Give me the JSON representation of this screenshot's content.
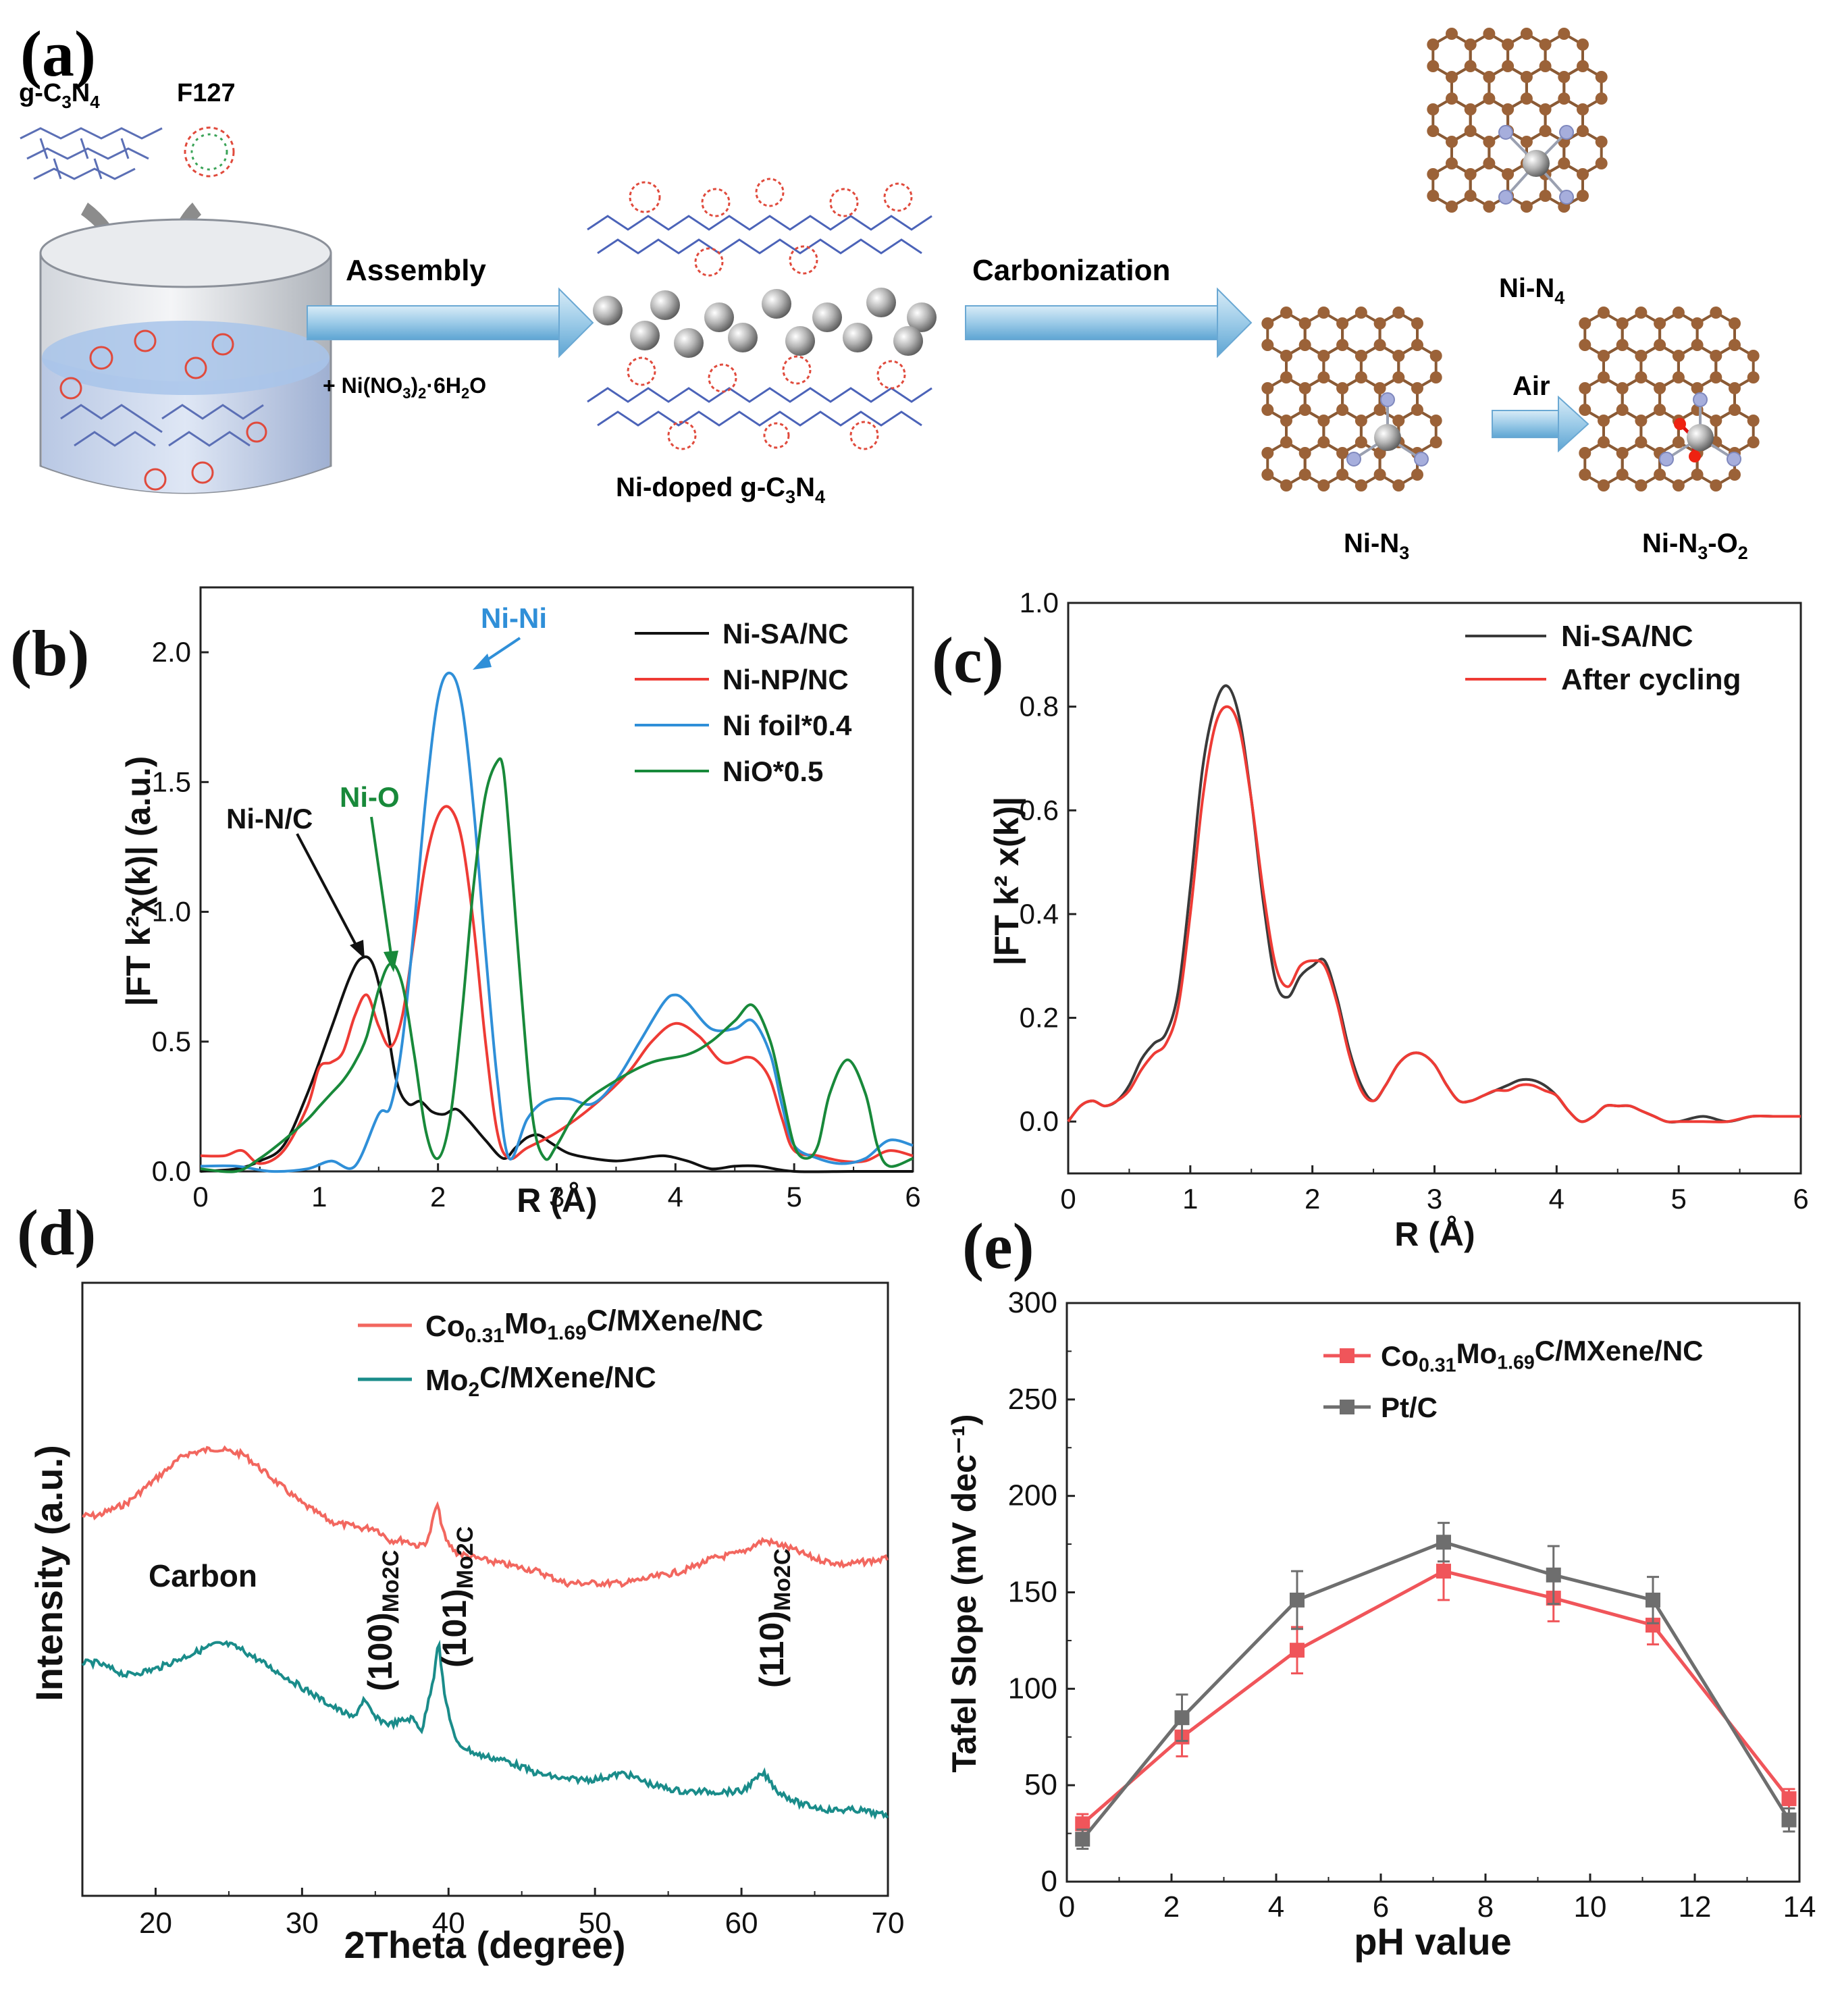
{
  "panel_a": {
    "label": "(a)",
    "g_c3n4": {
      "pre": "g-C",
      "sub1": "3",
      "mid": "N",
      "sub2": "4"
    },
    "f127": "F127",
    "assembly": "Assembly",
    "reagent": {
      "pre": "+ Ni(NO",
      "sub1": "3",
      "mid": ")",
      "sub2": "2",
      "post": "·6H",
      "sub3": "2",
      "end": "O"
    },
    "carbonization": "Carbonization",
    "ni_doped": {
      "pre": "Ni-doped g-C",
      "sub1": "3",
      "mid": "N",
      "sub2": "4"
    },
    "ni_n4": {
      "pre": "Ni-N",
      "sub": "4"
    },
    "ni_n3": {
      "pre": "Ni-N",
      "sub": "3"
    },
    "air": "Air",
    "ni_n3_o2": {
      "pre": "Ni-N",
      "sub1": "3",
      "mid": "-O",
      "sub2": "2"
    }
  },
  "chart_data": [
    {
      "panel": "b",
      "label": "(b)",
      "type": "line",
      "xlabel": "R (Å)",
      "ylabel": "|FT k²χ(k)| (a.u.)",
      "xlim": [
        0,
        6
      ],
      "ylim": [
        0,
        2.25
      ],
      "xticks": [
        "0",
        "1",
        "2",
        "3",
        "4",
        "5",
        "6"
      ],
      "yticks": [
        "0.0",
        "0.5",
        "1.0",
        "1.5",
        "2.0"
      ],
      "legend_position": "top-right",
      "annotations": [
        {
          "text": "Ni-Ni",
          "color": "#2f8fd8"
        },
        {
          "text": "Ni-N/C",
          "color": "#111111"
        },
        {
          "text": "Ni-O",
          "color": "#18893a"
        }
      ],
      "series": [
        {
          "name": "Ni-SA/NC",
          "color": "#111111",
          "x": [
            0,
            0.3,
            0.5,
            0.7,
            0.9,
            1.1,
            1.25,
            1.35,
            1.45,
            1.55,
            1.65,
            1.75,
            1.85,
            1.95,
            2.05,
            2.15,
            2.25,
            2.4,
            2.55,
            2.65,
            2.75,
            2.85,
            2.95,
            3.1,
            3.3,
            3.5,
            3.7,
            3.9,
            4.1,
            4.3,
            4.5,
            4.7,
            5,
            5.5,
            6
          ],
          "y": [
            0,
            0.01,
            0.04,
            0.1,
            0.3,
            0.55,
            0.74,
            0.82,
            0.8,
            0.62,
            0.35,
            0.26,
            0.27,
            0.23,
            0.22,
            0.24,
            0.2,
            0.12,
            0.05,
            0.09,
            0.13,
            0.14,
            0.11,
            0.07,
            0.05,
            0.04,
            0.05,
            0.06,
            0.04,
            0.01,
            0.02,
            0.02,
            0.0,
            0.0,
            0.0
          ]
        },
        {
          "name": "Ni-NP/NC",
          "color": "#ee3b35",
          "x": [
            0,
            0.2,
            0.35,
            0.5,
            0.7,
            0.9,
            1.0,
            1.1,
            1.2,
            1.3,
            1.4,
            1.5,
            1.6,
            1.7,
            1.8,
            1.9,
            2.0,
            2.1,
            2.2,
            2.3,
            2.4,
            2.5,
            2.6,
            2.75,
            3.0,
            3.3,
            3.6,
            3.8,
            4.0,
            4.2,
            4.4,
            4.6,
            4.7,
            4.8,
            4.9,
            5.0,
            5.2,
            5.4,
            5.6,
            5.8,
            6
          ],
          "y": [
            0.06,
            0.06,
            0.08,
            0.03,
            0.08,
            0.25,
            0.4,
            0.42,
            0.46,
            0.6,
            0.68,
            0.56,
            0.48,
            0.6,
            0.9,
            1.2,
            1.37,
            1.4,
            1.28,
            0.95,
            0.5,
            0.15,
            0.05,
            0.09,
            0.15,
            0.25,
            0.38,
            0.5,
            0.57,
            0.52,
            0.42,
            0.44,
            0.42,
            0.35,
            0.2,
            0.08,
            0.06,
            0.04,
            0.04,
            0.08,
            0.06
          ]
        },
        {
          "name": "Ni foil*0.4",
          "color": "#2f8fd8",
          "x": [
            0,
            0.3,
            0.6,
            0.9,
            1.1,
            1.3,
            1.5,
            1.6,
            1.7,
            1.8,
            1.9,
            2.0,
            2.1,
            2.2,
            2.3,
            2.4,
            2.5,
            2.6,
            2.75,
            2.9,
            3.1,
            3.3,
            3.5,
            3.7,
            3.9,
            4.0,
            4.1,
            4.3,
            4.5,
            4.65,
            4.8,
            4.9,
            5.0,
            5.2,
            5.4,
            5.6,
            5.8,
            6
          ],
          "y": [
            0.02,
            0.02,
            0.0,
            0.01,
            0.04,
            0.02,
            0.22,
            0.25,
            0.5,
            0.95,
            1.45,
            1.82,
            1.92,
            1.8,
            1.4,
            0.85,
            0.35,
            0.05,
            0.2,
            0.27,
            0.28,
            0.26,
            0.35,
            0.5,
            0.65,
            0.68,
            0.65,
            0.55,
            0.55,
            0.58,
            0.45,
            0.25,
            0.1,
            0.05,
            0.03,
            0.05,
            0.12,
            0.1
          ]
        },
        {
          "name": "NiO*0.5",
          "color": "#18893a",
          "x": [
            0,
            0.3,
            0.5,
            0.7,
            0.9,
            1.0,
            1.1,
            1.2,
            1.3,
            1.4,
            1.5,
            1.6,
            1.7,
            1.8,
            1.9,
            2.0,
            2.1,
            2.2,
            2.3,
            2.4,
            2.5,
            2.55,
            2.6,
            2.7,
            2.8,
            2.9,
            3.0,
            3.2,
            3.5,
            3.8,
            4.1,
            4.3,
            4.5,
            4.65,
            4.8,
            4.9,
            5.0,
            5.1,
            5.2,
            5.3,
            5.45,
            5.6,
            5.7,
            5.8,
            6
          ],
          "y": [
            0.01,
            0.0,
            0.05,
            0.12,
            0.2,
            0.25,
            0.3,
            0.35,
            0.42,
            0.52,
            0.7,
            0.8,
            0.72,
            0.45,
            0.15,
            0.05,
            0.2,
            0.6,
            1.1,
            1.45,
            1.58,
            1.55,
            1.3,
            0.7,
            0.2,
            0.05,
            0.1,
            0.25,
            0.35,
            0.42,
            0.45,
            0.5,
            0.58,
            0.64,
            0.5,
            0.3,
            0.1,
            0.05,
            0.1,
            0.3,
            0.43,
            0.3,
            0.1,
            0.02,
            0.05
          ]
        }
      ]
    },
    {
      "panel": "c",
      "label": "(c)",
      "type": "line",
      "xlabel": "R (Å)",
      "ylabel": "|FT k² x(k)|",
      "xlim": [
        0,
        6
      ],
      "ylim": [
        -0.1,
        1.0
      ],
      "xticks": [
        "0",
        "1",
        "2",
        "3",
        "4",
        "5",
        "6"
      ],
      "yticks": [
        "0.0",
        "0.2",
        "0.4",
        "0.6",
        "0.8",
        "1.0"
      ],
      "legend_position": "top-right",
      "series": [
        {
          "name": "Ni-SA/NC",
          "color": "#3a3a3a",
          "x": [
            0,
            0.1,
            0.2,
            0.3,
            0.4,
            0.5,
            0.6,
            0.7,
            0.8,
            0.9,
            1.0,
            1.1,
            1.2,
            1.3,
            1.4,
            1.5,
            1.6,
            1.7,
            1.8,
            1.9,
            2.0,
            2.1,
            2.2,
            2.3,
            2.4,
            2.5,
            2.6,
            2.7,
            2.8,
            2.9,
            3.0,
            3.1,
            3.2,
            3.3,
            3.4,
            3.5,
            3.6,
            3.7,
            3.8,
            3.9,
            4.0,
            4.1,
            4.2,
            4.3,
            4.4,
            4.5,
            4.6,
            4.7,
            4.8,
            4.9,
            5.0,
            5.2,
            5.4,
            5.6,
            5.8,
            6
          ],
          "y": [
            0.0,
            0.03,
            0.04,
            0.03,
            0.04,
            0.07,
            0.12,
            0.15,
            0.17,
            0.25,
            0.45,
            0.68,
            0.8,
            0.84,
            0.78,
            0.62,
            0.42,
            0.27,
            0.24,
            0.28,
            0.3,
            0.31,
            0.24,
            0.14,
            0.07,
            0.04,
            0.07,
            0.11,
            0.13,
            0.13,
            0.11,
            0.07,
            0.04,
            0.04,
            0.05,
            0.06,
            0.07,
            0.08,
            0.08,
            0.07,
            0.05,
            0.02,
            0.0,
            0.01,
            0.03,
            0.03,
            0.03,
            0.02,
            0.01,
            0.0,
            0.0,
            0.01,
            0.0,
            0.01,
            0.01,
            0.01
          ]
        },
        {
          "name": "After cycling",
          "color": "#ee3b35",
          "x": [
            0,
            0.1,
            0.2,
            0.3,
            0.4,
            0.5,
            0.6,
            0.7,
            0.8,
            0.9,
            1.0,
            1.1,
            1.2,
            1.3,
            1.4,
            1.5,
            1.6,
            1.7,
            1.8,
            1.9,
            2.0,
            2.1,
            2.2,
            2.3,
            2.4,
            2.5,
            2.6,
            2.7,
            2.8,
            2.9,
            3.0,
            3.1,
            3.2,
            3.3,
            3.4,
            3.5,
            3.6,
            3.7,
            3.8,
            3.9,
            4.0,
            4.1,
            4.2,
            4.3,
            4.4,
            4.5,
            4.6,
            4.7,
            4.8,
            4.9,
            5.0,
            5.2,
            5.4,
            5.6,
            5.8,
            6
          ],
          "y": [
            0.0,
            0.03,
            0.04,
            0.03,
            0.04,
            0.06,
            0.1,
            0.13,
            0.15,
            0.22,
            0.4,
            0.62,
            0.76,
            0.8,
            0.76,
            0.62,
            0.44,
            0.3,
            0.26,
            0.3,
            0.31,
            0.3,
            0.23,
            0.13,
            0.06,
            0.04,
            0.07,
            0.11,
            0.13,
            0.13,
            0.11,
            0.07,
            0.04,
            0.04,
            0.05,
            0.06,
            0.06,
            0.07,
            0.07,
            0.06,
            0.05,
            0.02,
            0.0,
            0.01,
            0.03,
            0.03,
            0.03,
            0.02,
            0.01,
            0.0,
            0.0,
            0.0,
            0.0,
            0.01,
            0.01,
            0.01
          ]
        }
      ]
    },
    {
      "panel": "d",
      "label": "(d)",
      "type": "line",
      "xlabel": "2Theta (degree)",
      "ylabel": "Intensity (a.u.)",
      "xlim": [
        15,
        70
      ],
      "ylim": [
        0,
        1
      ],
      "xticks": [
        "20",
        "30",
        "40",
        "50",
        "60",
        "70"
      ],
      "legend_position": "top",
      "annotations": [
        {
          "text": "Carbon"
        },
        {
          "text": "(100)",
          "sub": "Mo2C"
        },
        {
          "text": "(101)",
          "sub": "Mo2C"
        },
        {
          "text": "(110)",
          "sub": "Mo2C"
        }
      ],
      "series": [
        {
          "name": "Co0.31Mo1.69C/MXene/NC",
          "name_parts": {
            "pre": "Co",
            "sub1": "0.31",
            "mid": "Mo",
            "sub2": "1.69",
            "post": "C/MXene/NC"
          },
          "color": "#f2675f",
          "x": [
            15,
            16,
            18,
            20,
            22,
            24,
            26,
            28,
            30,
            32,
            34,
            35,
            36,
            37,
            38,
            38.6,
            39.2,
            39.8,
            40.5,
            42,
            44,
            46,
            48,
            50,
            52,
            54,
            56,
            58,
            60,
            61.5,
            63,
            65,
            67,
            70
          ],
          "y": [
            0.62,
            0.62,
            0.64,
            0.68,
            0.72,
            0.73,
            0.72,
            0.68,
            0.64,
            0.61,
            0.6,
            0.6,
            0.58,
            0.58,
            0.57,
            0.58,
            0.64,
            0.58,
            0.56,
            0.55,
            0.54,
            0.53,
            0.51,
            0.51,
            0.51,
            0.52,
            0.53,
            0.55,
            0.56,
            0.58,
            0.57,
            0.55,
            0.54,
            0.55
          ]
        },
        {
          "name": "Mo2C/MXene/NC",
          "name_parts": {
            "pre": "Mo",
            "sub1": "2",
            "post": "C/MXene/NC"
          },
          "color": "#1a8c8a",
          "x": [
            15,
            16,
            17,
            18,
            20,
            22,
            24,
            25,
            26,
            28,
            30,
            32,
            33.5,
            34.2,
            35,
            36,
            37.5,
            38.2,
            39.0,
            39.3,
            39.7,
            40.5,
            42,
            44,
            46,
            48,
            50,
            52,
            54,
            56,
            58,
            60,
            61.5,
            62.5,
            64,
            66,
            68,
            70
          ],
          "y": [
            0.38,
            0.38,
            0.37,
            0.36,
            0.37,
            0.39,
            0.41,
            0.41,
            0.4,
            0.37,
            0.34,
            0.31,
            0.29,
            0.32,
            0.29,
            0.28,
            0.29,
            0.27,
            0.36,
            0.42,
            0.33,
            0.25,
            0.23,
            0.22,
            0.2,
            0.19,
            0.19,
            0.2,
            0.18,
            0.17,
            0.17,
            0.17,
            0.2,
            0.17,
            0.15,
            0.14,
            0.14,
            0.13
          ]
        }
      ]
    },
    {
      "panel": "e",
      "label": "(e)",
      "type": "line",
      "xlabel": "pH value",
      "ylabel": "Tafel Slope (mV dec⁻¹)",
      "xlim": [
        0,
        14
      ],
      "ylim": [
        0,
        300
      ],
      "xticks": [
        "0",
        "2",
        "4",
        "6",
        "8",
        "10",
        "12",
        "14"
      ],
      "yticks": [
        "0",
        "50",
        "100",
        "150",
        "200",
        "250",
        "300"
      ],
      "legend_position": "top-right",
      "series": [
        {
          "name": "Co0.31Mo1.69C/MXene/NC",
          "name_parts": {
            "pre": "Co",
            "sub1": "0.31",
            "mid": "Mo",
            "sub2": "1.69",
            "post": "C/MXene/NC"
          },
          "color": "#f0555a",
          "x": [
            0.3,
            2.2,
            4.4,
            7.2,
            9.3,
            11.2,
            13.8
          ],
          "y": [
            30,
            75,
            120,
            161,
            147,
            133,
            43
          ],
          "err": [
            5,
            10,
            12,
            15,
            12,
            10,
            5
          ]
        },
        {
          "name": "Pt/C",
          "color": "#6e6e6e",
          "x": [
            0.3,
            2.2,
            4.4,
            7.2,
            9.3,
            11.2,
            13.8
          ],
          "y": [
            22,
            85,
            146,
            176,
            159,
            146,
            32
          ],
          "err": [
            5,
            12,
            15,
            10,
            15,
            12,
            6
          ]
        }
      ]
    }
  ]
}
